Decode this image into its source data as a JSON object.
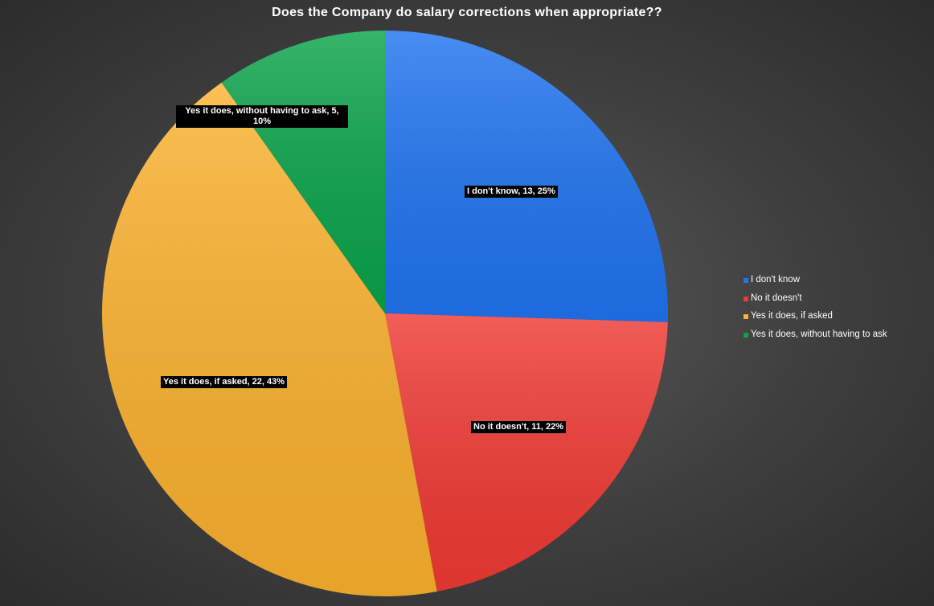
{
  "chart_data": {
    "type": "pie",
    "title": "Does the Company do salary corrections when appropriate??",
    "slices": [
      {
        "label": "I don't know",
        "value": 13,
        "percent": "25%",
        "data_label": "I don't know, 13, 25%",
        "color": "#1f74f0"
      },
      {
        "label": "No it doesn't",
        "value": 11,
        "percent": "22%",
        "data_label": "No it doesn't, 11, 22%",
        "color": "#f03a33"
      },
      {
        "label": "Yes it does, if asked",
        "value": 22,
        "percent": "43%",
        "data_label": "Yes it does, if asked, 22, 43%",
        "color": "#fbb22e"
      },
      {
        "label": "Yes it does, without having to ask",
        "value": 5,
        "percent": "10%",
        "data_label": "Yes it does, without having to ask, 5, 10%",
        "color": "#0aa44a"
      }
    ],
    "legend_position": "right"
  }
}
